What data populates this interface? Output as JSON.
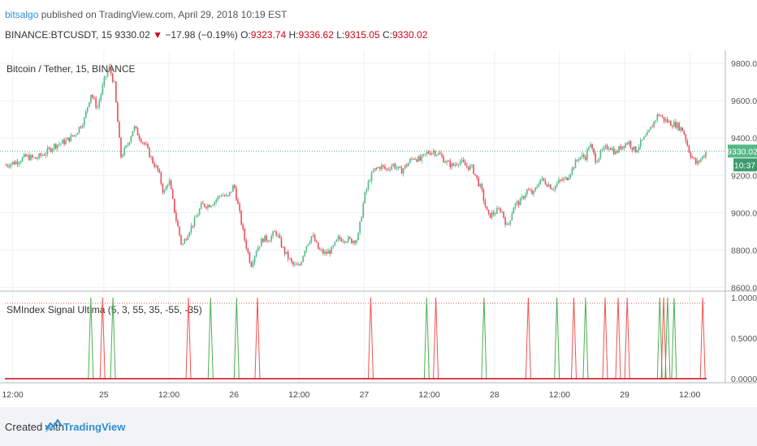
{
  "header": {
    "author": "bitsalgo",
    "published_text": "published on TradingView.com, April 29, 2018 10:19 EST",
    "symbol": "BINANCE:BTCUSDT, 15",
    "last": "9330.02",
    "change": "−17.98 (−0.19%)",
    "o_label": "O:",
    "o": "9323.74",
    "h_label": "H:",
    "h": "9336.62",
    "l_label": "L:",
    "l": "9315.05",
    "c_label": "C:",
    "c": "9330.02"
  },
  "chart_data": [
    {
      "type": "candlestick",
      "title": "Bitcoin / Tether, 15, BINANCE",
      "y_ticks": [
        "9800.00",
        "9600.00",
        "9400.00",
        "9200.00",
        "9000.00",
        "8800.00",
        "8600.00"
      ],
      "ylim": [
        8580,
        9870
      ],
      "last_price_label": "9330.02",
      "countdown_label": "10:37",
      "x_ticks": [
        "12:00",
        "25",
        "12:00",
        "26",
        "12:00",
        "27",
        "12:00",
        "28",
        "12:00",
        "29",
        "12:00"
      ],
      "x_tick_pos": [
        0.3,
        1.0,
        1.5,
        2.0,
        2.5,
        3.0,
        3.5,
        4.0,
        4.5,
        5.0,
        5.5
      ],
      "xlim": [
        0.24,
        5.63
      ],
      "close_path": [
        [
          0.24,
          9255
        ],
        [
          0.32,
          9270
        ],
        [
          0.4,
          9300
        ],
        [
          0.48,
          9290
        ],
        [
          0.55,
          9320
        ],
        [
          0.62,
          9360
        ],
        [
          0.7,
          9380
        ],
        [
          0.78,
          9420
        ],
        [
          0.85,
          9500
        ],
        [
          0.9,
          9640
        ],
        [
          0.95,
          9560
        ],
        [
          1.0,
          9700
        ],
        [
          1.04,
          9780
        ],
        [
          1.08,
          9690
        ],
        [
          1.13,
          9300
        ],
        [
          1.18,
          9360
        ],
        [
          1.23,
          9460
        ],
        [
          1.28,
          9400
        ],
        [
          1.32,
          9360
        ],
        [
          1.37,
          9280
        ],
        [
          1.42,
          9220
        ],
        [
          1.46,
          9100
        ],
        [
          1.5,
          9180
        ],
        [
          1.55,
          8980
        ],
        [
          1.6,
          8820
        ],
        [
          1.65,
          8900
        ],
        [
          1.7,
          8960
        ],
        [
          1.75,
          9040
        ],
        [
          1.8,
          9040
        ],
        [
          1.85,
          9060
        ],
        [
          1.9,
          9100
        ],
        [
          1.95,
          9080
        ],
        [
          2.0,
          9150
        ],
        [
          2.03,
          9040
        ],
        [
          2.08,
          8860
        ],
        [
          2.13,
          8720
        ],
        [
          2.17,
          8800
        ],
        [
          2.22,
          8860
        ],
        [
          2.27,
          8860
        ],
        [
          2.32,
          8900
        ],
        [
          2.38,
          8800
        ],
        [
          2.45,
          8720
        ],
        [
          2.5,
          8710
        ],
        [
          2.55,
          8820
        ],
        [
          2.6,
          8880
        ],
        [
          2.65,
          8800
        ],
        [
          2.7,
          8780
        ],
        [
          2.75,
          8800
        ],
        [
          2.8,
          8860
        ],
        [
          2.85,
          8860
        ],
        [
          2.9,
          8850
        ],
        [
          2.95,
          8860
        ],
        [
          3.0,
          9080
        ],
        [
          3.04,
          9180
        ],
        [
          3.08,
          9230
        ],
        [
          3.13,
          9250
        ],
        [
          3.17,
          9230
        ],
        [
          3.22,
          9260
        ],
        [
          3.28,
          9220
        ],
        [
          3.33,
          9260
        ],
        [
          3.38,
          9300
        ],
        [
          3.43,
          9280
        ],
        [
          3.48,
          9320
        ],
        [
          3.53,
          9330
        ],
        [
          3.58,
          9310
        ],
        [
          3.63,
          9270
        ],
        [
          3.68,
          9250
        ],
        [
          3.73,
          9280
        ],
        [
          3.78,
          9250
        ],
        [
          3.83,
          9240
        ],
        [
          3.9,
          9120
        ],
        [
          3.95,
          8980
        ],
        [
          4.0,
          9000
        ],
        [
          4.05,
          9020
        ],
        [
          4.1,
          8920
        ],
        [
          4.15,
          9040
        ],
        [
          4.2,
          9060
        ],
        [
          4.25,
          9120
        ],
        [
          4.3,
          9100
        ],
        [
          4.35,
          9180
        ],
        [
          4.4,
          9160
        ],
        [
          4.45,
          9130
        ],
        [
          4.5,
          9170
        ],
        [
          4.55,
          9180
        ],
        [
          4.6,
          9240
        ],
        [
          4.65,
          9300
        ],
        [
          4.7,
          9300
        ],
        [
          4.73,
          9370
        ],
        [
          4.78,
          9280
        ],
        [
          4.83,
          9330
        ],
        [
          4.88,
          9360
        ],
        [
          4.93,
          9320
        ],
        [
          4.98,
          9360
        ],
        [
          5.03,
          9380
        ],
        [
          5.08,
          9330
        ],
        [
          5.13,
          9380
        ],
        [
          5.18,
          9420
        ],
        [
          5.22,
          9480
        ],
        [
          5.26,
          9530
        ],
        [
          5.3,
          9500
        ],
        [
          5.35,
          9480
        ],
        [
          5.4,
          9470
        ],
        [
          5.45,
          9440
        ],
        [
          5.5,
          9320
        ],
        [
          5.55,
          9260
        ],
        [
          5.6,
          9300
        ],
        [
          5.63,
          9330
        ]
      ]
    },
    {
      "type": "line",
      "title": "SMIndex Signal Ultima (5, 3, 55, 35, -55, -35)",
      "y_ticks": [
        "1.0000",
        "0.5000",
        "0.0000"
      ],
      "ylim": [
        -0.05,
        1.08
      ],
      "xlim": [
        0.24,
        5.63
      ],
      "threshold": 0.93,
      "series": [
        {
          "color": "#4caf50",
          "spikes": [
            0.9,
            1.07,
            1.82,
            2.02,
            3.48,
            3.92,
            4.48,
            4.7,
            5.27,
            5.33,
            5.38
          ]
        },
        {
          "color": "#ef5350",
          "spikes": [
            0.99,
            1.65,
            2.18,
            3.05,
            3.55,
            4.26,
            4.61,
            4.85,
            4.95,
            5.02,
            5.3,
            5.6
          ]
        }
      ]
    }
  ],
  "footer": {
    "created_with": "Created with",
    "brand": "TradingView"
  }
}
